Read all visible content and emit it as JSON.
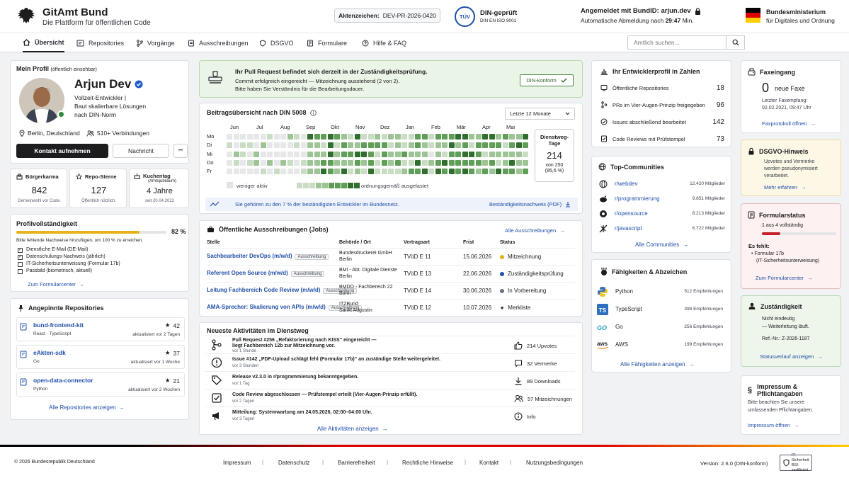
{
  "header": {
    "title": "GitAmt Bund",
    "subtitle": "Die Plattform für öffentlichen Code",
    "aktenzeichen_label": "Aktenzeichen:",
    "aktenzeichen": "DEV-PR-2026-0420",
    "tuv": "TÜV",
    "din_title": "DIN-geprüft",
    "din_sub": "DIN EN ISO 9001",
    "login_text": "Angemeldet mit BundID: arjun.dev",
    "logout_prefix": "Automatische Abmeldung nach ",
    "logout_time": "29:47",
    "logout_suffix": " Min.",
    "ministry_line1": "Bundesministerium",
    "ministry_line2": "für Digitales und Ordnung"
  },
  "nav": {
    "items": [
      "Übersicht",
      "Repositories",
      "Vorgänge",
      "Ausschreibungen",
      "DSGVO",
      "Formulare",
      "Hilfe & FAQ"
    ],
    "search_placeholder": "Amtlich suchen..."
  },
  "profile": {
    "section_title": "Mein Profil",
    "section_note": "(öffentlich einsehbar)",
    "name": "Arjun Dev",
    "role_line1": "Vollzeit-Entwickler |",
    "role_line2": "Baut skalierbare Lösungen",
    "role_line3": "nach DIN-Norm",
    "location": "Berlin, Deutschland",
    "connections": "510+ Verbindungen",
    "contact_button": "Kontakt aufnehmen",
    "message_button": "Nachricht",
    "more_button": "•••"
  },
  "stats": [
    {
      "label": "Bürgerkarma",
      "value": "842",
      "note": "Gemeinwohl vor Code."
    },
    {
      "label": "Repo-Sterne",
      "value": "127",
      "note": "Öffentlich nützlich."
    },
    {
      "label": "Kuchentag",
      "label2": "(Amtsjubiläum)",
      "value": "4 Jahre",
      "note": "seit 20.04.2022"
    }
  ],
  "completeness": {
    "title": "Profilvollständigkeit",
    "percent_label": "82 %",
    "percent": 82,
    "intro": "Bitte fehlende Nachweise hinzufügen, um 100 % zu erreichen.",
    "items": [
      {
        "label": "Dienstliche E-Mail (DE-Mail)",
        "done": true
      },
      {
        "label": "Datenschulungs-Nachweis (jährlich)",
        "done": true
      },
      {
        "label": "IT-Sicherheitsunterweisung (Formular 17b)",
        "done": false
      },
      {
        "label": "Passbild (biometrisch, aktuell)",
        "done": false
      }
    ],
    "link": "Zum Formularcenter"
  },
  "pinned": {
    "title": "Angepinnte Repositories",
    "repos": [
      {
        "name": "bund-frontend-kit",
        "meta": "React · TypeScript",
        "stars": "42",
        "updated": "aktualisiert vor 2 Tagen"
      },
      {
        "name": "eAkten-sdk",
        "meta": "Go",
        "stars": "37",
        "updated": "aktualisiert vor 1 Woche"
      },
      {
        "name": "open-data-connector",
        "meta": "Python",
        "stars": "21",
        "updated": "aktualisiert vor 2 Wochen"
      }
    ],
    "link": "Alle Repositories anzeigen"
  },
  "review": {
    "title": "Ihr Pull Request befindet sich derzeit in der Zuständigkeitsprüfung.",
    "line1": "Commit erfolgreich eingereicht — Mitzeichnung ausstehend (2 von 2).",
    "line2": "Bitte haben Sie Verständnis für die Bearbeitungsdauer.",
    "badge": "DIN-konform"
  },
  "contrib": {
    "title": "Beitragsübersicht nach DIN 5008",
    "range": "Letzte 12 Monate",
    "months": [
      "Jun",
      "Jul",
      "Aug",
      "Sep",
      "Okt",
      "Nov",
      "Dez",
      "Jan",
      "Feb",
      "Mär",
      "Apr",
      "Mai"
    ],
    "days": [
      "Mo",
      "Di",
      "Mi",
      "Do",
      "Fr"
    ],
    "legend_low": "weniger aktiv",
    "legend_high": "ordnungsgemäß ausgelastet",
    "dienstweg_title": "Dienstweg-Tage",
    "dienstweg_value": "214",
    "dienstweg_of": "von 250",
    "dienstweg_pct": "(85,6 %)",
    "notice": "Sie gehören zu den 7 % der beständigsten Entwickler im Bundesnetz.",
    "pdf_link": "Beständigkeitsnachweis (PDF)",
    "colors": [
      "#e8e9eb",
      "#c9dcc4",
      "#9cc494",
      "#5f9e57",
      "#2f6e2c"
    ]
  },
  "jobs": {
    "title": "Öffentliche Ausschreibungen (Jobs)",
    "link": "Alle Ausschreibungen",
    "headers": [
      "Stelle",
      "Behörde / Ort",
      "Vertragsart",
      "Frist",
      "Status"
    ],
    "rows": [
      {
        "title": "Sachbearbeiter DevOps (m/w/d)",
        "tag": "Ausschreibung",
        "org1": "Bundesdruckerei GmbH",
        "org2": "Berlin",
        "type": "TVöD E 11",
        "date": "15.06.2026",
        "status": "Mitzeichnung",
        "status_color": "#e3b21b"
      },
      {
        "title": "Referent Open Source (m/w/d)",
        "tag": "Ausschreibung",
        "org1": "BMI - Abt. Digitale Dienste",
        "org2": "Berlin",
        "type": "TVöD E 13",
        "date": "22.06.2026",
        "status": "Zuständigkeitsprüfung",
        "status_color": "#1f4fa8"
      },
      {
        "title": "Leitung Fachbereich Code Review (m/w/d)",
        "tag": "Ausschreibung",
        "org1": "BMDO - Fachbereich 22",
        "org2": "Bonn",
        "type": "TVöD E 14",
        "date": "30.06.2026",
        "status": "In Vorbereitung",
        "status_color": "#6b7280"
      },
      {
        "title": "AMA-Sprecher: Skalierung von APIs (m/w/d)",
        "tag": "Ausschreibung",
        "org1": "ITZBund",
        "org2": "Sankt Augustin",
        "type": "TVöD E 12",
        "date": "10.07.2026",
        "status": "Merkliste",
        "status_color": "#1d1d1f"
      }
    ]
  },
  "activities": {
    "title": "Neueste Aktivitäten im Dienstweg",
    "items": [
      {
        "icon": "git-merge-icon",
        "text1": "Pull Request #256 „Refaktorierung nach KISS“ eingereicht —",
        "text2": "liegt Fachbereich 12b zur Mitzeichnung vor.",
        "time": "vor 1 Stunde",
        "metric": "214 Upvotes",
        "micon": "thumbs-up-icon"
      },
      {
        "icon": "alert-icon",
        "text1": "Issue #142 „PDF-Upload schlägt fehl (Formular 17b)“ an zuständige Stelle weitergeleitet.",
        "text2": "",
        "time": "vor 3 Stunden",
        "metric": "32 Vermerke",
        "micon": "comment-icon"
      },
      {
        "icon": "tag-icon",
        "text1": "Release v2.3.0 in r/programmierung bekanntgegeben.",
        "text2": "",
        "time": "vor 1 Tag",
        "metric": "89 Downloads",
        "micon": "download-icon"
      },
      {
        "icon": "checkbox-icon",
        "text1": "Code Review abgeschlossen — Prüfstempel erteilt (Vier-Augen-Prinzip erfüllt).",
        "text2": "",
        "time": "vor 2 Tagen",
        "metric": "57 Mitzeichnungen",
        "micon": "users-icon"
      },
      {
        "icon": "megaphone-icon",
        "text1": "Mitteilung: Systemwartung am 24.05.2026, 02:00–04:00 Uhr.",
        "text2": "",
        "time": "vor 3 Tagen",
        "metric": "Info",
        "micon": "info-icon"
      }
    ],
    "link": "Alle Aktivitäten anzeigen"
  },
  "numbers": {
    "title": "Ihr Entwicklerprofil in Zahlen",
    "rows": [
      {
        "label": "Öffentliche Repositories",
        "value": "18"
      },
      {
        "label": "PRs im Vier-Augen-Prinzip freigegeben",
        "value": "96"
      },
      {
        "label": "Issues abschließend bearbeitet",
        "value": "142"
      },
      {
        "label": "Code Reviews mit Prüfstempel",
        "value": "73"
      }
    ]
  },
  "communities": {
    "title": "Top-Communities",
    "items": [
      {
        "name": "r/webdev",
        "members": "12.420 Mitglieder"
      },
      {
        "name": "r/programmierung",
        "members": "9.851 Mitglieder"
      },
      {
        "name": "r/opensource",
        "members": "8.213 Mitglieder"
      },
      {
        "name": "r/javascript",
        "members": "6.722 Mitglieder"
      }
    ],
    "link": "Alle Communities"
  },
  "skills": {
    "title": "Fähigkeiten & Abzeichen",
    "items": [
      {
        "name": "Python",
        "endorse": "512 Empfehlungen"
      },
      {
        "name": "TypeScript",
        "endorse": "398 Empfehlungen"
      },
      {
        "name": "Go",
        "endorse": "256 Empfehlungen"
      },
      {
        "name": "AWS",
        "endorse": "199 Empfehlungen"
      }
    ],
    "link": "Alle Fähigkeiten anzeigen"
  },
  "fax": {
    "title": "Faxeingang",
    "count": "0",
    "count_label": "neue Faxe",
    "last_label": "Letzter Faxempfang:",
    "last_date": "02.02.2021, 09:47 Uhr",
    "link": "Faxprotokoll öffnen"
  },
  "dsgvo": {
    "title": "DSGVO-Hinweis",
    "text1": "Upvotes und Vermerke",
    "text2": "werden pseudonymisiert",
    "text3": "verarbeitet.",
    "link": "Mehr erfahren"
  },
  "formstatus": {
    "title": "Formularstatus",
    "progress_label": "1 aus 4 vollständig",
    "progress": 25,
    "missing_label": "Es fehlt:",
    "missing1": "Formular 17b",
    "missing2": "(IT-Sicherheitsunterweisung)",
    "link": "Zum Formularcenter"
  },
  "zust": {
    "title": "Zuständigkeit",
    "text1": "Nicht eindeutig",
    "text2": "— Weiterleitung läuft.",
    "ref": "Ref.-Nr.: Z-2026-1187",
    "link": "Statusverlauf anzeigen"
  },
  "impressum": {
    "title": "Impressum & Pflichtangaben",
    "text1": "Bitte beachten Sie unsere",
    "text2": "umfassenden Pflichtangaben.",
    "link": "Impressum öffnen"
  },
  "footer": {
    "copyright": "© 2026 Bundesrepublik Deutschland",
    "links": [
      "Impressum",
      "Datenschutz",
      "Barrierefreiheit",
      "Rechtliche Hinweise",
      "Kontakt",
      "Nutzungsbedingungen"
    ],
    "version": "Version: 2.6.0 (DIN-konform)",
    "cert1": "IT-Sicherheit",
    "cert2": "BSI-zertifiziert"
  }
}
